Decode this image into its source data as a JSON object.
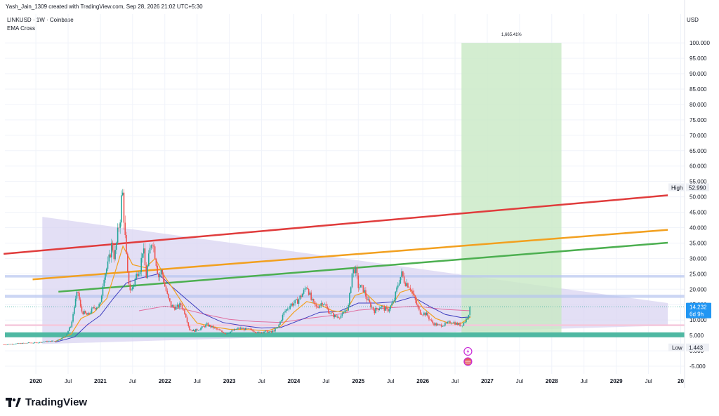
{
  "header": {
    "caption": "Yash_Jain_1309 created with TradingView.com, Sep 28, 2026 21:02 UTC+5:30",
    "symbol": "LINKUSD · 1W · Coinbase",
    "indicator": "EMA Cross",
    "currency": "USD"
  },
  "footer": {
    "brand": "TradingView",
    "logo_icon": "tradingview-logo-icon"
  },
  "colors": {
    "red_trendline": "#e03c3c",
    "orange_trendline": "#f2a01f",
    "green_trendline": "#4caf50",
    "band_fill": "#b7c4f0",
    "teal_band": "#4fb8a2",
    "pink_band": "#f5c6da",
    "triangle_fill": "#d9d4f2",
    "target_box": "#c8e8c4",
    "up_candle": "#26a69a",
    "down_candle": "#ef5350",
    "ema_fast": "#f2a01f",
    "ema_slow": "#3f3fbf",
    "ema_long": "#e06fa0",
    "price_label_bg": "#2196f3"
  },
  "chart_data": {
    "type": "candlestick",
    "title": "LINKUSD · 1W · Coinbase",
    "x_ticks": [
      "2020",
      "Jul",
      "2021",
      "Jul",
      "2022",
      "Jul",
      "2023",
      "Jul",
      "2024",
      "Jul",
      "2025",
      "Jul",
      "2026",
      "Jul",
      "2027",
      "Jul",
      "2028",
      "Jul",
      "2029",
      "Jul",
      "20"
    ],
    "y_ticks": [
      "-5.000",
      "0.000",
      "5.000",
      "10.000",
      "15.000",
      "20.000",
      "25.000",
      "30.000",
      "35.000",
      "40.000",
      "45.000",
      "50.000",
      "55.000",
      "60.000",
      "65.000",
      "70.000",
      "75.000",
      "80.000",
      "85.000",
      "90.000",
      "95.000",
      "100.000"
    ],
    "ylim": [
      -7.5,
      103
    ],
    "last_price": "14.232",
    "countdown": "6d 9h",
    "high_label": "High",
    "high_value": "52.990",
    "low_label": "Low",
    "low_value": "1.443",
    "target_percent": "1,665.41%",
    "target_box": {
      "x_start": 2026.6,
      "x_end": 2028.15,
      "y_start": 5.8,
      "y_end": 100
    },
    "trendlines": [
      {
        "name": "red",
        "points": [
          [
            2019.5,
            31.5
          ],
          [
            2029.8,
            50.5
          ]
        ]
      },
      {
        "name": "orange",
        "points": [
          [
            2019.95,
            23.2
          ],
          [
            2029.8,
            39.3
          ]
        ]
      },
      {
        "name": "green",
        "points": [
          [
            2020.35,
            19.2
          ],
          [
            2029.8,
            35.1
          ]
        ]
      }
    ],
    "horizontal_bands": [
      {
        "name": "blue-upper",
        "y_low": 23.8,
        "y_high": 24.6
      },
      {
        "name": "blue-lower",
        "y_low": 17.2,
        "y_high": 18.2
      },
      {
        "name": "pink",
        "y_low": 8.0,
        "y_high": 8.6
      },
      {
        "name": "teal",
        "y_low": 4.4,
        "y_high": 6.0
      }
    ],
    "triangle": [
      [
        2020.1,
        43.5
      ],
      [
        2029.8,
        15.5
      ],
      [
        2029.8,
        8.2
      ],
      [
        2020.1,
        2.2
      ]
    ],
    "price_series": [
      [
        2019.5,
        2.0
      ],
      [
        2019.7,
        2.3
      ],
      [
        2019.9,
        2.6
      ],
      [
        2020.0,
        2.6
      ],
      [
        2020.15,
        3.0
      ],
      [
        2020.3,
        3.2
      ],
      [
        2020.45,
        4.5
      ],
      [
        2020.55,
        8.5
      ],
      [
        2020.6,
        15.0
      ],
      [
        2020.65,
        19.5
      ],
      [
        2020.7,
        13.0
      ],
      [
        2020.8,
        11.5
      ],
      [
        2020.9,
        14.0
      ],
      [
        2021.0,
        15.0
      ],
      [
        2021.05,
        24.0
      ],
      [
        2021.12,
        28.0
      ],
      [
        2021.18,
        35.0
      ],
      [
        2021.22,
        30.0
      ],
      [
        2021.27,
        38.0
      ],
      [
        2021.31,
        44.0
      ],
      [
        2021.34,
        53.0
      ],
      [
        2021.38,
        38.0
      ],
      [
        2021.42,
        25.0
      ],
      [
        2021.47,
        19.0
      ],
      [
        2021.52,
        22.0
      ],
      [
        2021.58,
        26.0
      ],
      [
        2021.62,
        27.0
      ],
      [
        2021.66,
        34.0
      ],
      [
        2021.71,
        24.0
      ],
      [
        2021.75,
        30.0
      ],
      [
        2021.8,
        37.0
      ],
      [
        2021.85,
        31.0
      ],
      [
        2021.9,
        24.0
      ],
      [
        2021.95,
        26.0
      ],
      [
        2022.0,
        21.0
      ],
      [
        2022.05,
        17.0
      ],
      [
        2022.1,
        14.5
      ],
      [
        2022.18,
        14.0
      ],
      [
        2022.25,
        15.0
      ],
      [
        2022.32,
        12.0
      ],
      [
        2022.38,
        7.0
      ],
      [
        2022.45,
        6.5
      ],
      [
        2022.55,
        7.2
      ],
      [
        2022.65,
        8.5
      ],
      [
        2022.75,
        7.5
      ],
      [
        2022.85,
        6.5
      ],
      [
        2022.95,
        5.6
      ],
      [
        2023.05,
        6.5
      ],
      [
        2023.15,
        7.3
      ],
      [
        2023.25,
        7.0
      ],
      [
        2023.35,
        6.8
      ],
      [
        2023.45,
        5.8
      ],
      [
        2023.55,
        6.4
      ],
      [
        2023.65,
        6.0
      ],
      [
        2023.75,
        7.5
      ],
      [
        2023.85,
        12.5
      ],
      [
        2023.95,
        15.0
      ],
      [
        2024.05,
        16.0
      ],
      [
        2024.15,
        19.0
      ],
      [
        2024.2,
        21.5
      ],
      [
        2024.27,
        16.5
      ],
      [
        2024.35,
        14.0
      ],
      [
        2024.45,
        16.0
      ],
      [
        2024.55,
        12.5
      ],
      [
        2024.65,
        11.0
      ],
      [
        2024.75,
        11.5
      ],
      [
        2024.85,
        14.5
      ],
      [
        2024.9,
        25.0
      ],
      [
        2024.95,
        27.0
      ],
      [
        2025.0,
        21.0
      ],
      [
        2025.08,
        20.0
      ],
      [
        2025.15,
        16.0
      ],
      [
        2025.25,
        13.0
      ],
      [
        2025.35,
        14.5
      ],
      [
        2025.45,
        13.0
      ],
      [
        2025.55,
        16.0
      ],
      [
        2025.62,
        22.0
      ],
      [
        2025.67,
        25.0
      ],
      [
        2025.72,
        22.5
      ],
      [
        2025.8,
        21.0
      ],
      [
        2025.87,
        17.0
      ],
      [
        2025.95,
        12.5
      ],
      [
        2026.05,
        12.0
      ],
      [
        2026.15,
        9.0
      ],
      [
        2026.25,
        8.2
      ],
      [
        2026.35,
        8.6
      ],
      [
        2026.45,
        9.5
      ],
      [
        2026.52,
        8.8
      ],
      [
        2026.6,
        8.2
      ],
      [
        2026.66,
        9.8
      ],
      [
        2026.7,
        11.5
      ],
      [
        2026.74,
        14.2
      ]
    ],
    "ema_fast": [
      [
        2020.3,
        3.0
      ],
      [
        2020.55,
        5.5
      ],
      [
        2020.7,
        10.5
      ],
      [
        2020.9,
        12.5
      ],
      [
        2021.1,
        17.0
      ],
      [
        2021.25,
        27.0
      ],
      [
        2021.35,
        34.0
      ],
      [
        2021.5,
        28.0
      ],
      [
        2021.7,
        27.0
      ],
      [
        2021.85,
        30.0
      ],
      [
        2022.0,
        24.0
      ],
      [
        2022.15,
        19.5
      ],
      [
        2022.35,
        13.0
      ],
      [
        2022.5,
        9.0
      ],
      [
        2022.75,
        7.8
      ],
      [
        2023.0,
        7.0
      ],
      [
        2023.3,
        6.9
      ],
      [
        2023.6,
        6.5
      ],
      [
        2023.8,
        8.0
      ],
      [
        2024.0,
        12.5
      ],
      [
        2024.2,
        16.0
      ],
      [
        2024.4,
        15.0
      ],
      [
        2024.6,
        13.0
      ],
      [
        2024.8,
        12.5
      ],
      [
        2024.95,
        18.0
      ],
      [
        2025.1,
        19.0
      ],
      [
        2025.3,
        15.0
      ],
      [
        2025.5,
        14.0
      ],
      [
        2025.65,
        19.0
      ],
      [
        2025.8,
        20.0
      ],
      [
        2026.0,
        14.0
      ],
      [
        2026.2,
        10.5
      ],
      [
        2026.4,
        9.0
      ],
      [
        2026.6,
        9.0
      ],
      [
        2026.74,
        11.0
      ]
    ],
    "ema_slow": [
      [
        2020.3,
        2.8
      ],
      [
        2020.6,
        4.5
      ],
      [
        2020.8,
        8.5
      ],
      [
        2021.0,
        11.5
      ],
      [
        2021.2,
        17.0
      ],
      [
        2021.4,
        22.0
      ],
      [
        2021.6,
        23.5
      ],
      [
        2021.9,
        25.0
      ],
      [
        2022.1,
        21.0
      ],
      [
        2022.35,
        16.5
      ],
      [
        2022.6,
        12.0
      ],
      [
        2022.9,
        9.2
      ],
      [
        2023.2,
        8.2
      ],
      [
        2023.5,
        7.4
      ],
      [
        2023.8,
        7.6
      ],
      [
        2024.1,
        10.0
      ],
      [
        2024.4,
        12.5
      ],
      [
        2024.7,
        12.8
      ],
      [
        2025.0,
        15.5
      ],
      [
        2025.3,
        15.5
      ],
      [
        2025.6,
        16.0
      ],
      [
        2025.85,
        17.5
      ],
      [
        2026.1,
        14.5
      ],
      [
        2026.35,
        11.8
      ],
      [
        2026.6,
        10.8
      ],
      [
        2026.74,
        11.0
      ]
    ],
    "ema_long": [
      [
        2021.6,
        13.0
      ],
      [
        2022.0,
        14.5
      ],
      [
        2022.3,
        13.5
      ],
      [
        2022.7,
        11.5
      ],
      [
        2023.0,
        10.2
      ],
      [
        2023.4,
        9.5
      ],
      [
        2023.8,
        9.2
      ],
      [
        2024.2,
        10.5
      ],
      [
        2024.6,
        11.5
      ],
      [
        2025.0,
        13.2
      ],
      [
        2025.5,
        14.0
      ],
      [
        2025.9,
        14.5
      ],
      [
        2026.3,
        13.5
      ],
      [
        2026.74,
        13.0
      ]
    ],
    "event_icons": [
      "lightning-icon",
      "us-flag-icon"
    ]
  }
}
